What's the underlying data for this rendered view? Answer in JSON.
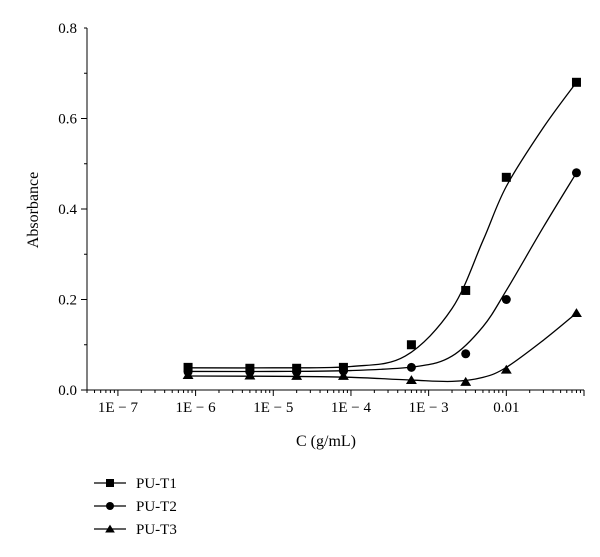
{
  "chart_data": {
    "type": "scatter",
    "xlabel": "C (g/mL)",
    "ylabel": "Absorbance",
    "x_scale": "log",
    "xlim": [
      4e-08,
      0.1
    ],
    "ylim": [
      0.0,
      0.8
    ],
    "x_ticks": [
      {
        "value": 1e-07,
        "label": "1E − 7"
      },
      {
        "value": 1e-06,
        "label": "1E − 6"
      },
      {
        "value": 1e-05,
        "label": "1E − 5"
      },
      {
        "value": 0.0001,
        "label": "1E − 4"
      },
      {
        "value": 0.001,
        "label": "1E − 3"
      },
      {
        "value": 0.01,
        "label": "0.01"
      }
    ],
    "y_ticks": [
      {
        "value": 0.0,
        "label": "0.0"
      },
      {
        "value": 0.2,
        "label": "0.2"
      },
      {
        "value": 0.4,
        "label": "0.4"
      },
      {
        "value": 0.6,
        "label": "0.6"
      },
      {
        "value": 0.8,
        "label": "0.8"
      }
    ],
    "grid": false,
    "legend_position": "bottom-left",
    "series": [
      {
        "name": "PU-T1",
        "marker": "square",
        "x": [
          8e-07,
          5e-06,
          2e-05,
          8e-05,
          0.0006,
          0.003,
          0.01,
          0.08
        ],
        "y": [
          0.05,
          0.048,
          0.048,
          0.05,
          0.1,
          0.22,
          0.47,
          0.68
        ],
        "fit": [
          [
            8e-07,
            0.049
          ],
          [
            1e-05,
            0.049
          ],
          [
            0.0001,
            0.052
          ],
          [
            0.0005,
            0.075
          ],
          [
            0.002,
            0.18
          ],
          [
            0.005,
            0.33
          ],
          [
            0.01,
            0.45
          ],
          [
            0.03,
            0.58
          ],
          [
            0.08,
            0.68
          ]
        ]
      },
      {
        "name": "PU-T2",
        "marker": "circle",
        "x": [
          8e-07,
          5e-06,
          2e-05,
          8e-05,
          0.0006,
          0.003,
          0.01,
          0.08
        ],
        "y": [
          0.04,
          0.04,
          0.04,
          0.042,
          0.05,
          0.08,
          0.2,
          0.48
        ],
        "fit": [
          [
            8e-07,
            0.041
          ],
          [
            1e-05,
            0.041
          ],
          [
            0.0001,
            0.043
          ],
          [
            0.0007,
            0.052
          ],
          [
            0.002,
            0.075
          ],
          [
            0.005,
            0.14
          ],
          [
            0.01,
            0.22
          ],
          [
            0.03,
            0.36
          ],
          [
            0.08,
            0.48
          ]
        ]
      },
      {
        "name": "PU-T3",
        "marker": "triangle",
        "x": [
          8e-07,
          5e-06,
          2e-05,
          8e-05,
          0.0006,
          0.003,
          0.01,
          0.08
        ],
        "y": [
          0.033,
          0.032,
          0.031,
          0.031,
          0.022,
          0.018,
          0.045,
          0.17
        ],
        "fit": [
          [
            8e-07,
            0.031
          ],
          [
            2e-05,
            0.03
          ],
          [
            0.0001,
            0.028
          ],
          [
            0.0006,
            0.022
          ],
          [
            0.002,
            0.019
          ],
          [
            0.005,
            0.028
          ],
          [
            0.01,
            0.05
          ],
          [
            0.03,
            0.11
          ],
          [
            0.08,
            0.17
          ]
        ]
      }
    ]
  }
}
